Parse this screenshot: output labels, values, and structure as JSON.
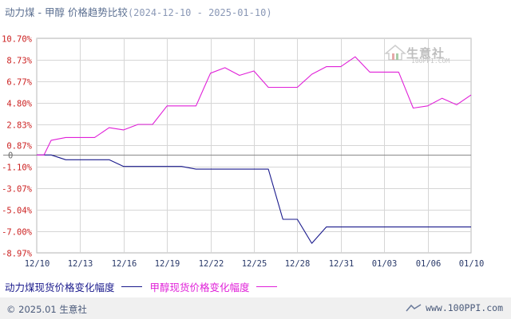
{
  "chart_data": {
    "type": "line",
    "title": "动力煤 - 甲醇 价格趋势比较",
    "date_range": "(2024-12-10 - 2025-01-10)",
    "xlabel": "",
    "ylabel": "",
    "ylim": [
      -8.97,
      10.7
    ],
    "y_ticks": [
      10.7,
      8.73,
      6.77,
      4.8,
      2.83,
      0.87,
      0,
      -1.1,
      -3.07,
      -5.04,
      -7.0,
      -8.97
    ],
    "y_tick_labels": [
      "10.70%",
      "8.73%",
      "6.77%",
      "4.80%",
      "2.83%",
      "0.87%",
      "0",
      "-1.10%",
      "-3.07%",
      "-5.04%",
      "-7.00%",
      "-8.97%"
    ],
    "x_tick_labels": [
      "12/10",
      "12/13",
      "12/16",
      "12/19",
      "12/22",
      "12/25",
      "12/28",
      "12/31",
      "01/03",
      "01/06",
      "01/10"
    ],
    "x_tick_days": [
      0,
      3,
      6,
      9,
      12,
      15,
      18,
      21,
      24,
      27,
      30
    ],
    "x_range_days": [
      0,
      30
    ],
    "grid": true,
    "legend_position": "bottom-left",
    "series": [
      {
        "name": "动力煤现货价格变化幅度",
        "color": "#1a1a8c",
        "points": [
          [
            0,
            0
          ],
          [
            1,
            0
          ],
          [
            2,
            -0.44
          ],
          [
            3,
            -0.44
          ],
          [
            4,
            -0.44
          ],
          [
            5,
            -0.44
          ],
          [
            6,
            -1.05
          ],
          [
            7,
            -1.05
          ],
          [
            8,
            -1.05
          ],
          [
            9,
            -1.05
          ],
          [
            10,
            -1.05
          ],
          [
            11,
            -1.3
          ],
          [
            12,
            -1.3
          ],
          [
            13,
            -1.3
          ],
          [
            14,
            -1.3
          ],
          [
            15,
            -1.3
          ],
          [
            16,
            -1.3
          ],
          [
            17,
            -5.9
          ],
          [
            18,
            -5.9
          ],
          [
            19,
            -8.1
          ],
          [
            20,
            -6.6
          ],
          [
            21,
            -6.6
          ],
          [
            22,
            -6.6
          ],
          [
            23,
            -6.6
          ],
          [
            24,
            -6.6
          ],
          [
            25,
            -6.6
          ],
          [
            26,
            -6.6
          ],
          [
            27,
            -6.6
          ],
          [
            28,
            -6.6
          ],
          [
            29,
            -6.6
          ],
          [
            30,
            -6.6
          ]
        ]
      },
      {
        "name": "甲醇现货价格变化幅度",
        "color": "#e020d8",
        "points": [
          [
            0,
            0
          ],
          [
            0.5,
            0
          ],
          [
            1,
            1.35
          ],
          [
            2,
            1.6
          ],
          [
            3,
            1.6
          ],
          [
            4,
            1.6
          ],
          [
            5,
            2.5
          ],
          [
            6,
            2.3
          ],
          [
            7,
            2.8
          ],
          [
            8,
            2.8
          ],
          [
            9,
            4.5
          ],
          [
            10,
            4.5
          ],
          [
            11,
            4.5
          ],
          [
            12,
            7.5
          ],
          [
            13,
            8.0
          ],
          [
            14,
            7.3
          ],
          [
            15,
            7.7
          ],
          [
            16,
            6.2
          ],
          [
            17,
            6.2
          ],
          [
            18,
            6.2
          ],
          [
            19,
            7.4
          ],
          [
            20,
            8.1
          ],
          [
            21,
            8.1
          ],
          [
            22,
            9.0
          ],
          [
            23,
            7.6
          ],
          [
            24,
            7.6
          ],
          [
            25,
            7.6
          ],
          [
            26,
            4.3
          ],
          [
            27,
            4.5
          ],
          [
            28,
            5.2
          ],
          [
            29,
            4.6
          ],
          [
            30,
            5.5
          ]
        ]
      }
    ]
  },
  "footer": {
    "copyright": "© 2025.01 生意社",
    "site": "www.100PPI.com"
  },
  "watermark": {
    "brand": "生意社",
    "url": "100PPI.COM"
  }
}
